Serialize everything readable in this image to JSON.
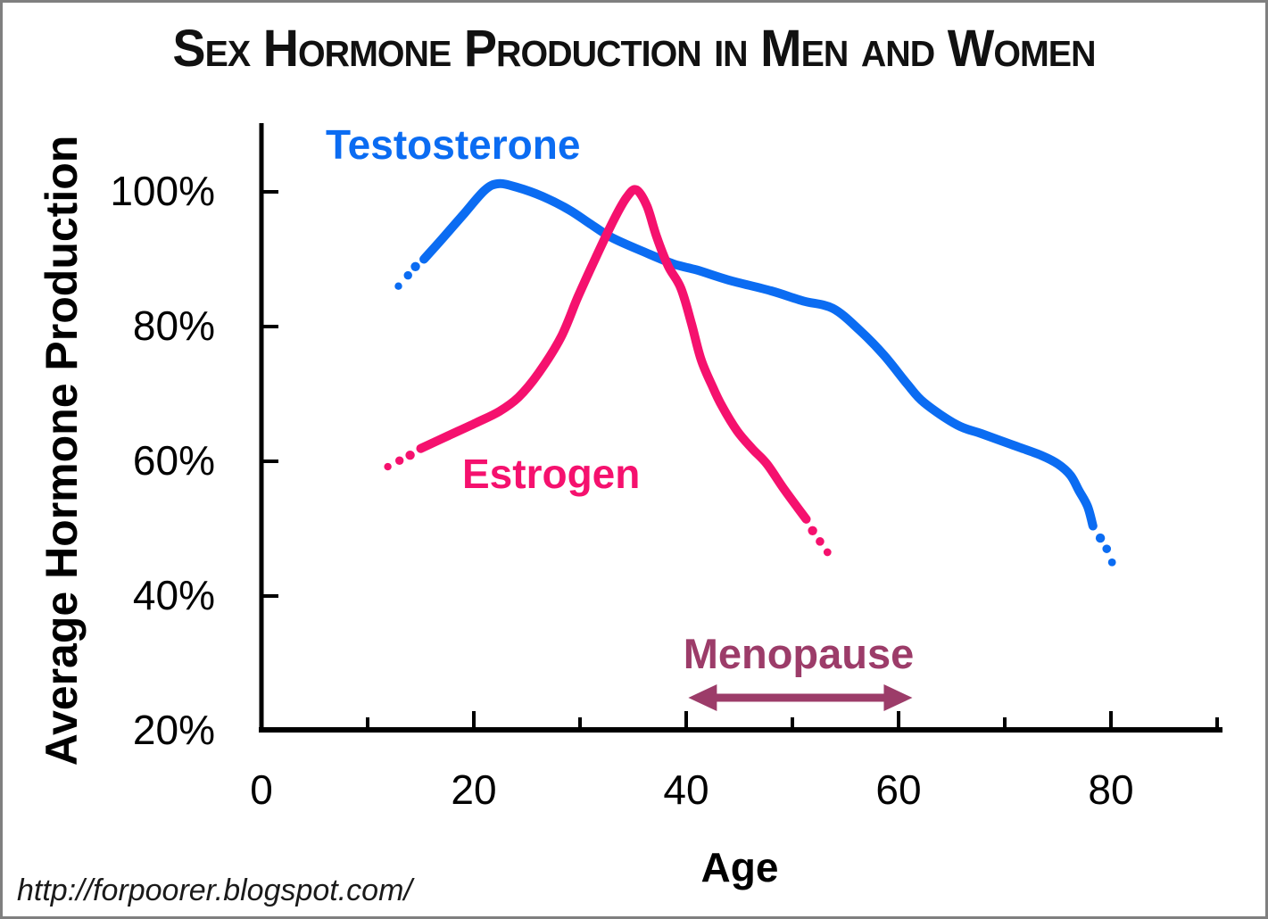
{
  "title": "Sex Hormone Production in Men and Women",
  "footer": {
    "url_text": "http://forpoorer.blogspot.com/"
  },
  "axes": {
    "y_title": "Average Hormone Production",
    "x_title": "Age",
    "y_ticks": [
      {
        "label": "100%",
        "value": 100
      },
      {
        "label": "80%",
        "value": 80
      },
      {
        "label": "60%",
        "value": 60
      },
      {
        "label": "40%",
        "value": 40
      },
      {
        "label": "20%",
        "value": 20
      }
    ],
    "x_major_ticks": [
      {
        "label": "0",
        "value": 0
      },
      {
        "label": "20",
        "value": 20
      },
      {
        "label": "40",
        "value": 40
      },
      {
        "label": "60",
        "value": 60
      },
      {
        "label": "80",
        "value": 80
      }
    ],
    "x_minor_ticks": [
      10,
      30,
      50,
      70,
      90
    ]
  },
  "colors": {
    "testosterone": "#0b6cf2",
    "estrogen": "#f5116e",
    "menopause": "#9c3c69",
    "axis": "#000000"
  },
  "chart_data": {
    "type": "line",
    "title": "Sex Hormone Production in Men and Women",
    "xlabel": "Age",
    "ylabel": "Average Hormone Production",
    "xlim": [
      0,
      90
    ],
    "ylim": [
      20,
      110
    ],
    "grid": false,
    "legend": "inline-curve-labels",
    "y_tick_values": [
      100,
      80,
      60,
      40,
      20
    ],
    "x_major_tick_values": [
      0,
      20,
      40,
      60,
      80
    ],
    "x_minor_tick_values": [
      10,
      30,
      50,
      70,
      90
    ],
    "series": [
      {
        "name": "Testosterone",
        "color": "#0b6cf2",
        "style": "solid-with-dotted-ends",
        "lead_dots": [
          [
            12.9,
            86.0
          ],
          [
            13.8,
            87.6
          ],
          [
            14.5,
            88.9
          ]
        ],
        "points": [
          [
            15.3,
            90.0
          ],
          [
            17,
            93.0
          ],
          [
            19,
            96.6
          ],
          [
            21,
            100.2
          ],
          [
            22.3,
            101.2
          ],
          [
            24,
            100.7
          ],
          [
            26.5,
            99.3
          ],
          [
            29,
            97.3
          ],
          [
            31,
            95.2
          ],
          [
            33,
            93.2
          ],
          [
            36,
            91.1
          ],
          [
            38.8,
            89.3
          ],
          [
            41,
            88.4
          ],
          [
            44,
            86.9
          ],
          [
            48,
            85.3
          ],
          [
            51,
            83.8
          ],
          [
            53.8,
            82.7
          ],
          [
            56.3,
            79.5
          ],
          [
            58.6,
            75.8
          ],
          [
            60.8,
            71.5
          ],
          [
            62.4,
            68.7
          ],
          [
            65.5,
            65.4
          ],
          [
            67.8,
            64.1
          ],
          [
            70.6,
            62.5
          ],
          [
            73.4,
            60.9
          ],
          [
            75,
            59.6
          ],
          [
            76.2,
            57.9
          ],
          [
            77,
            55.6
          ],
          [
            77.8,
            53.3
          ],
          [
            78.3,
            50.4
          ]
        ],
        "tail_dots": [
          [
            79.0,
            48.6
          ],
          [
            79.6,
            47.0
          ],
          [
            80.1,
            45.0
          ]
        ]
      },
      {
        "name": "Estrogen",
        "color": "#f5116e",
        "style": "solid-with-dotted-ends",
        "lead_dots": [
          [
            11.9,
            59.2
          ],
          [
            13.0,
            60.1
          ],
          [
            14.0,
            60.9
          ]
        ],
        "points": [
          [
            15,
            61.9
          ],
          [
            17.6,
            63.8
          ],
          [
            20.2,
            65.7
          ],
          [
            22.4,
            67.4
          ],
          [
            24.2,
            69.5
          ],
          [
            26.1,
            73.1
          ],
          [
            28.2,
            78.4
          ],
          [
            29.8,
            84.4
          ],
          [
            31.5,
            90.3
          ],
          [
            33.2,
            95.9
          ],
          [
            34.4,
            99.2
          ],
          [
            35.3,
            100.3
          ],
          [
            36.3,
            97.9
          ],
          [
            37.2,
            93.4
          ],
          [
            38.3,
            89.0
          ],
          [
            39.5,
            85.7
          ],
          [
            40.5,
            80.4
          ],
          [
            41.4,
            75.1
          ],
          [
            42.5,
            71.0
          ],
          [
            43.4,
            68.1
          ],
          [
            44.8,
            64.5
          ],
          [
            46.2,
            61.9
          ],
          [
            47.6,
            59.6
          ],
          [
            49.2,
            55.9
          ],
          [
            51.3,
            51.4
          ]
        ],
        "tail_dots": [
          [
            51.9,
            49.7
          ],
          [
            52.6,
            48.1
          ],
          [
            53.3,
            46.5
          ]
        ]
      }
    ],
    "annotation": {
      "label": "Menopause",
      "age_start": 40.2,
      "age_end": 61.3,
      "value": 24.9,
      "color": "#9c3c69",
      "shape": "double-headed-arrow"
    }
  }
}
